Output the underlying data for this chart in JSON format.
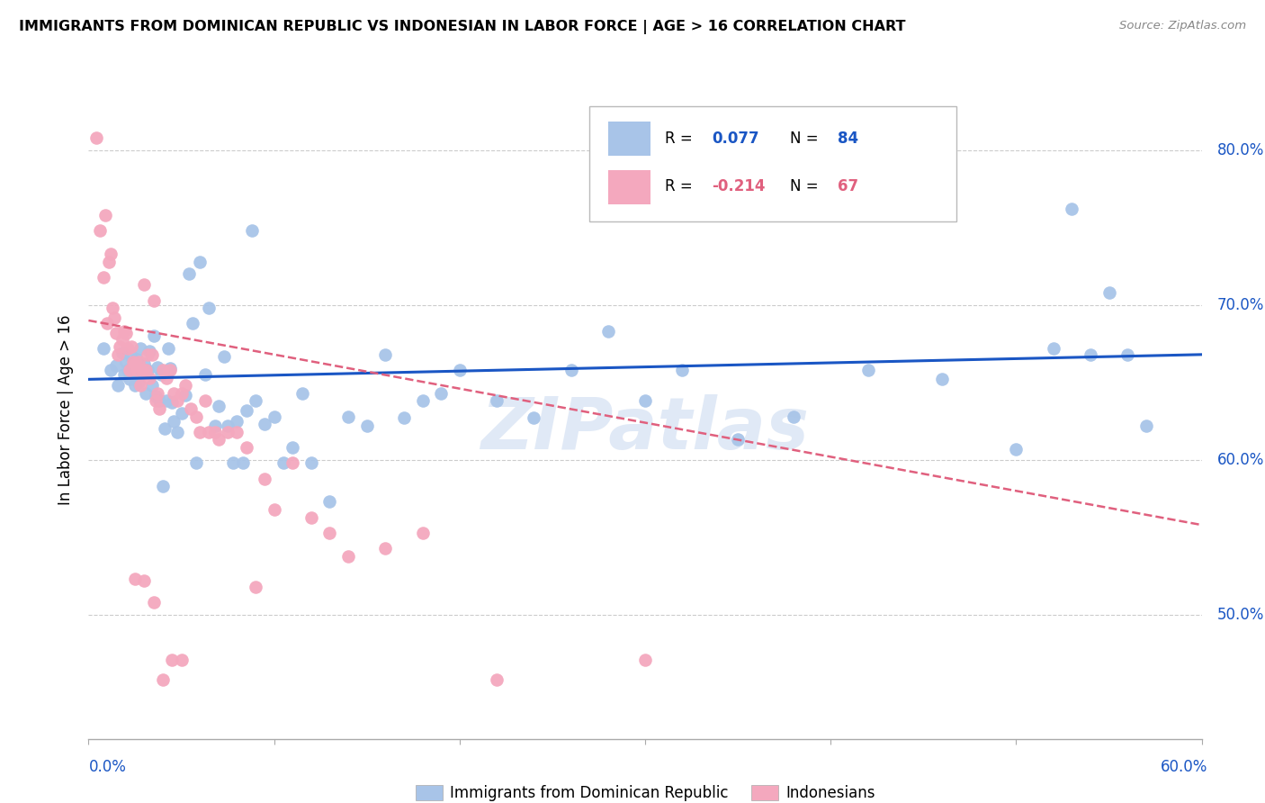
{
  "title": "IMMIGRANTS FROM DOMINICAN REPUBLIC VS INDONESIAN IN LABOR FORCE | AGE > 16 CORRELATION CHART",
  "source": "Source: ZipAtlas.com",
  "ylabel": "In Labor Force | Age > 16",
  "xlim": [
    0.0,
    0.6
  ],
  "ylim": [
    0.42,
    0.845
  ],
  "yticks": [
    0.5,
    0.6,
    0.7,
    0.8
  ],
  "blue_R": "0.077",
  "blue_N": "84",
  "pink_R": "-0.214",
  "pink_N": "67",
  "blue_color": "#a8c4e8",
  "pink_color": "#f4a8be",
  "blue_line_color": "#1a56c4",
  "pink_line_color": "#e0607e",
  "legend_label_blue": "Immigrants from Dominican Republic",
  "legend_label_pink": "Indonesians",
  "watermark": "ZIPatlas",
  "blue_scatter_x": [
    0.008,
    0.012,
    0.015,
    0.016,
    0.018,
    0.019,
    0.02,
    0.021,
    0.022,
    0.023,
    0.024,
    0.025,
    0.025,
    0.026,
    0.027,
    0.028,
    0.029,
    0.03,
    0.031,
    0.032,
    0.033,
    0.034,
    0.035,
    0.036,
    0.037,
    0.038,
    0.039,
    0.04,
    0.041,
    0.042,
    0.043,
    0.044,
    0.045,
    0.046,
    0.048,
    0.05,
    0.052,
    0.054,
    0.056,
    0.058,
    0.06,
    0.063,
    0.065,
    0.068,
    0.07,
    0.073,
    0.075,
    0.078,
    0.08,
    0.083,
    0.085,
    0.088,
    0.09,
    0.095,
    0.1,
    0.105,
    0.11,
    0.115,
    0.12,
    0.13,
    0.14,
    0.15,
    0.16,
    0.17,
    0.18,
    0.19,
    0.2,
    0.22,
    0.24,
    0.26,
    0.28,
    0.3,
    0.32,
    0.35,
    0.38,
    0.42,
    0.46,
    0.5,
    0.54,
    0.57,
    0.52,
    0.55,
    0.53,
    0.56
  ],
  "blue_scatter_y": [
    0.672,
    0.658,
    0.661,
    0.648,
    0.669,
    0.655,
    0.663,
    0.658,
    0.652,
    0.667,
    0.655,
    0.66,
    0.648,
    0.665,
    0.65,
    0.672,
    0.657,
    0.662,
    0.643,
    0.658,
    0.67,
    0.648,
    0.68,
    0.641,
    0.66,
    0.638,
    0.655,
    0.583,
    0.62,
    0.638,
    0.672,
    0.659,
    0.637,
    0.625,
    0.618,
    0.63,
    0.642,
    0.72,
    0.688,
    0.598,
    0.728,
    0.655,
    0.698,
    0.622,
    0.635,
    0.667,
    0.622,
    0.598,
    0.625,
    0.598,
    0.632,
    0.748,
    0.638,
    0.623,
    0.628,
    0.598,
    0.608,
    0.643,
    0.598,
    0.573,
    0.628,
    0.622,
    0.668,
    0.627,
    0.638,
    0.643,
    0.658,
    0.638,
    0.627,
    0.658,
    0.683,
    0.638,
    0.658,
    0.613,
    0.628,
    0.658,
    0.652,
    0.607,
    0.668,
    0.622,
    0.672,
    0.708,
    0.762,
    0.668
  ],
  "pink_scatter_x": [
    0.004,
    0.006,
    0.008,
    0.009,
    0.01,
    0.011,
    0.012,
    0.013,
    0.014,
    0.015,
    0.016,
    0.017,
    0.018,
    0.019,
    0.02,
    0.021,
    0.022,
    0.023,
    0.024,
    0.025,
    0.026,
    0.027,
    0.028,
    0.029,
    0.03,
    0.031,
    0.032,
    0.033,
    0.034,
    0.035,
    0.036,
    0.037,
    0.038,
    0.04,
    0.042,
    0.044,
    0.046,
    0.048,
    0.05,
    0.052,
    0.055,
    0.058,
    0.06,
    0.063,
    0.065,
    0.068,
    0.07,
    0.075,
    0.08,
    0.085,
    0.09,
    0.095,
    0.1,
    0.11,
    0.12,
    0.13,
    0.14,
    0.16,
    0.18,
    0.22,
    0.025,
    0.03,
    0.035,
    0.04,
    0.045,
    0.05,
    0.3
  ],
  "pink_scatter_y": [
    0.808,
    0.748,
    0.718,
    0.758,
    0.688,
    0.728,
    0.733,
    0.698,
    0.692,
    0.682,
    0.668,
    0.673,
    0.678,
    0.683,
    0.682,
    0.672,
    0.658,
    0.673,
    0.663,
    0.662,
    0.658,
    0.663,
    0.648,
    0.658,
    0.713,
    0.658,
    0.668,
    0.653,
    0.668,
    0.703,
    0.638,
    0.643,
    0.633,
    0.658,
    0.653,
    0.658,
    0.643,
    0.638,
    0.643,
    0.648,
    0.633,
    0.628,
    0.618,
    0.638,
    0.618,
    0.618,
    0.613,
    0.618,
    0.618,
    0.608,
    0.518,
    0.588,
    0.568,
    0.598,
    0.563,
    0.553,
    0.538,
    0.543,
    0.553,
    0.458,
    0.523,
    0.522,
    0.508,
    0.458,
    0.471,
    0.471,
    0.471
  ],
  "blue_trend_x": [
    0.0,
    0.6
  ],
  "blue_trend_y": [
    0.652,
    0.668
  ],
  "pink_trend_x": [
    0.0,
    0.6
  ],
  "pink_trend_y": [
    0.69,
    0.558
  ]
}
